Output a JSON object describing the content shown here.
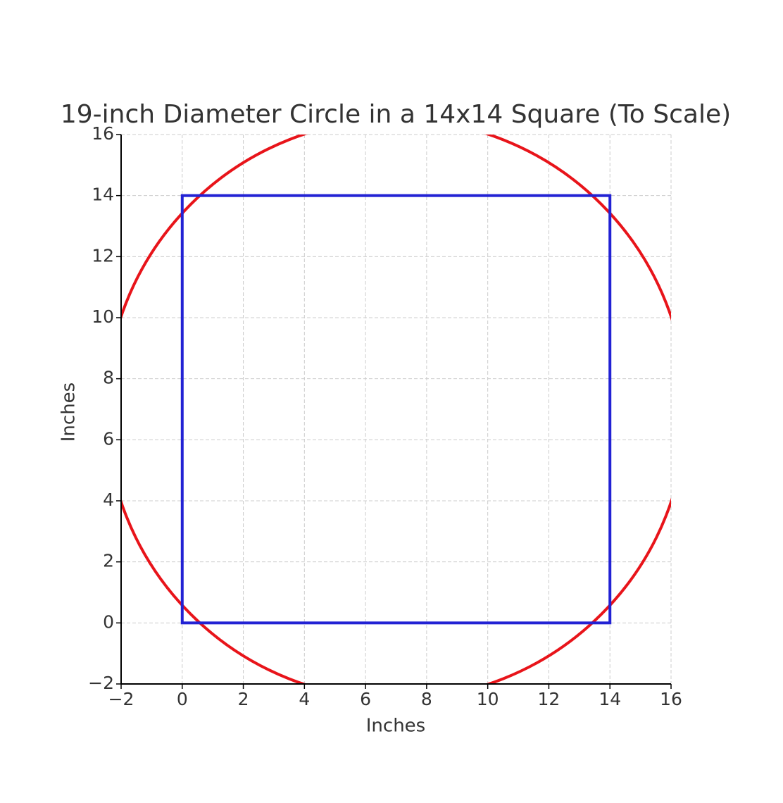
{
  "chart_data": {
    "type": "shapes",
    "title": "19-inch Diameter Circle in a 14x14 Square (To Scale)",
    "x_label": "Inches",
    "y_label": "Inches",
    "xlim": [
      -2,
      16
    ],
    "ylim": [
      -2,
      16
    ],
    "xticks": [
      {
        "value": -2,
        "label": "−2"
      },
      0,
      2,
      4,
      6,
      8,
      10,
      12,
      14,
      16
    ],
    "yticks": [
      {
        "value": -2,
        "label": "−2"
      },
      0,
      2,
      4,
      6,
      8,
      10,
      12,
      14,
      16
    ],
    "grid": true,
    "shapes": [
      {
        "kind": "circle",
        "color": "#e8141a",
        "cx": 7,
        "cy": 7,
        "r": 9.5
      },
      {
        "kind": "rect",
        "color": "#2222d4",
        "x": [
          0,
          14
        ],
        "y": [
          0,
          14
        ]
      }
    ]
  }
}
